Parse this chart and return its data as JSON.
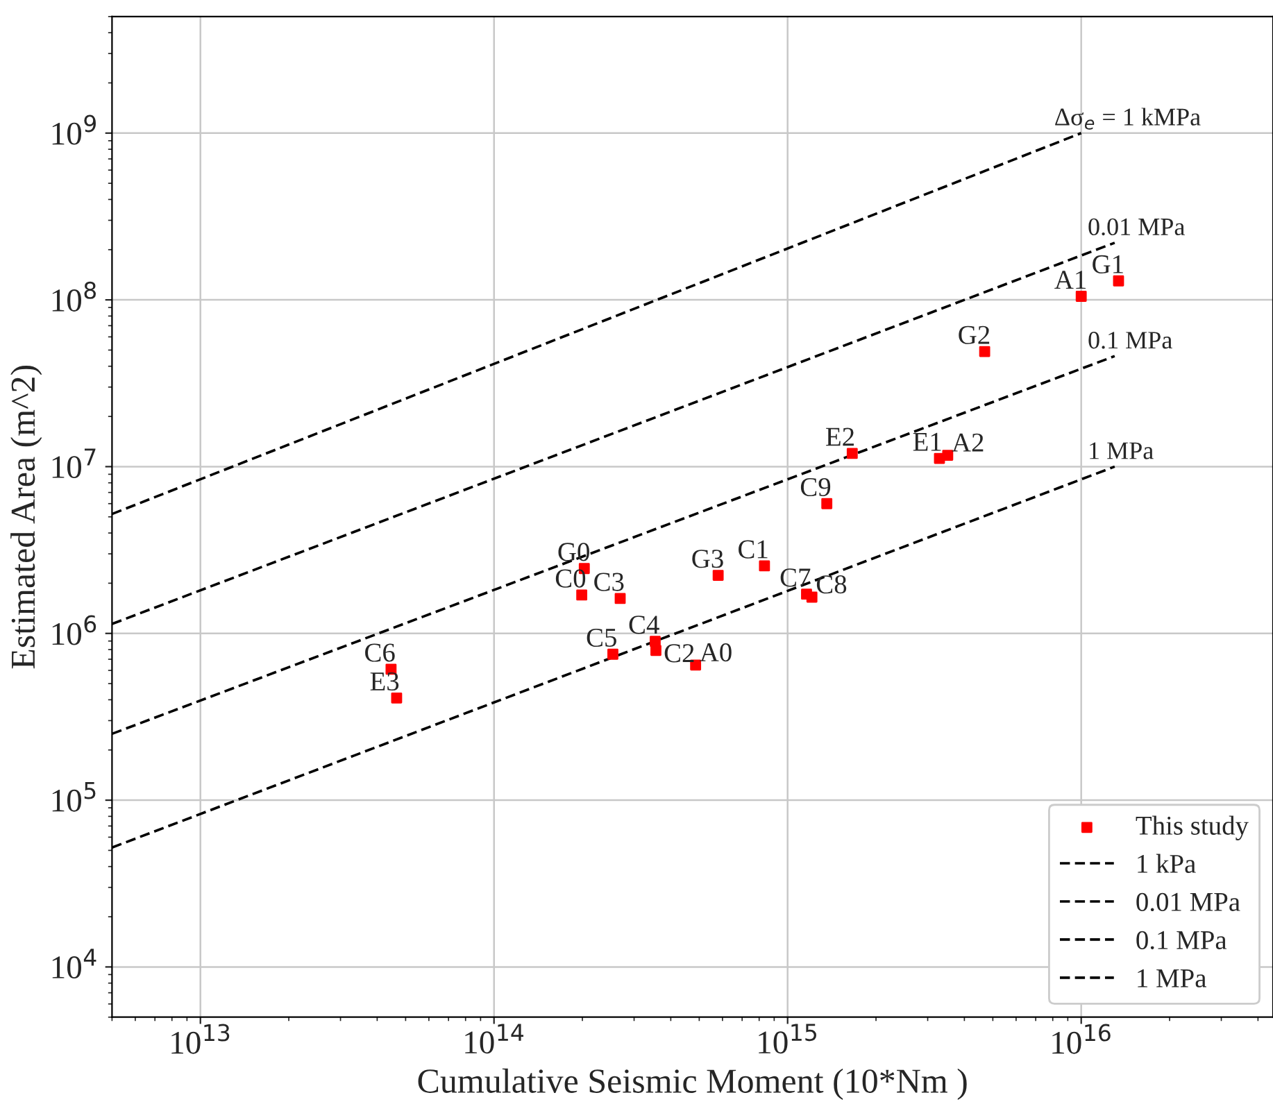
{
  "chart_data": {
    "type": "scatter",
    "xlabel": "Cumulative Seismic Moment (10*Nm )",
    "ylabel": "Estimated Area (m^2)",
    "log": "xy",
    "grid": true,
    "legend": "bottom right",
    "xlim": [
      5000000000000.0,
      4.5e+16
    ],
    "ylim": [
      5000.0,
      5000000000.0
    ],
    "xticks": [
      {
        "value": 10000000000000.0,
        "label": "10$^{13}$"
      },
      {
        "value": 100000000000000.0,
        "label": "10$^{14}$"
      },
      {
        "value": 1000000000000000.0,
        "label": "10$^{15}$"
      },
      {
        "value": 1e+16,
        "label": "10$^{16}$"
      }
    ],
    "yticks": [
      {
        "value": 10000.0,
        "label": "10$^{4}$"
      },
      {
        "value": 100000.0,
        "label": "10$^{5}$"
      },
      {
        "value": 1000000.0,
        "label": "10$^{6}$"
      },
      {
        "value": 10000000.0,
        "label": "10$^{7}$"
      },
      {
        "value": 100000000.0,
        "label": "10$^{8}$"
      },
      {
        "value": 1000000000.0,
        "label": "10$^{9}$"
      }
    ],
    "series": [
      {
        "name": "This study",
        "marker": "square",
        "color": "#ff0000",
        "x": [
          44600000000000.0,
          46600000000000.0,
          203000000000000.0,
          199000000000000.0,
          269000000000000.0,
          354000000000000.0,
          254000000000000.0,
          356000000000000.0,
          486000000000000.0,
          580000000000000.0,
          834000000000000.0,
          1160000000000000.0,
          1210000000000000.0,
          1e+16,
          1.34e+16,
          4690000000000000.0,
          1660000000000000.0,
          3290000000000000.0,
          3510000000000000.0,
          1360000000000000.0
        ],
        "values": [
          610000.0,
          410000.0,
          2450000.0,
          1700000.0,
          1620000.0,
          896000.0,
          750000.0,
          790000.0,
          646000.0,
          2230000.0,
          2540000.0,
          1720000.0,
          1650000.0,
          105000000.0,
          130000000.0,
          49000000.0,
          12000000.0,
          11200000.0,
          11700000.0,
          6000000.0
        ]
      },
      {
        "name": "1 kPa",
        "type": "line",
        "line_style": "dashed",
        "color": "#000000",
        "x": [
          5000000000000.0,
          1e+16
        ],
        "values": [
          5200000.0,
          1000000000.0
        ]
      },
      {
        "name": "0.01 MPa",
        "type": "line",
        "line_style": "dashed",
        "color": "#000000",
        "x": [
          5000000000000.0,
          1.3e+16
        ],
        "values": [
          1140000.0,
          220000000.0
        ]
      },
      {
        "name": "0.1 MPa",
        "type": "line",
        "line_style": "dashed",
        "color": "#000000",
        "x": [
          5000000000000.0,
          1.3e+16
        ],
        "values": [
          250000.0,
          46000000.0
        ]
      },
      {
        "name": "1 MPa",
        "type": "line",
        "line_style": "dashed",
        "color": "#000000",
        "x": [
          5000000000000.0,
          1.3e+16
        ],
        "values": [
          52000.0,
          10000000.0
        ]
      }
    ],
    "annotations": [
      {
        "text": "C6",
        "x": 44600000000000.0,
        "y": 610000.0
      },
      {
        "text": "E3",
        "x": 46600000000000.0,
        "y": 410000.0
      },
      {
        "text": "G0",
        "x": 203000000000000.0,
        "y": 2450000.0
      },
      {
        "text": "C0",
        "x": 199000000000000.0,
        "y": 1700000.0
      },
      {
        "text": "C3",
        "x": 269000000000000.0,
        "y": 1620000.0
      },
      {
        "text": "C4",
        "x": 354000000000000.0,
        "y": 896000.0
      },
      {
        "text": "C5",
        "x": 254000000000000.0,
        "y": 750000.0
      },
      {
        "text": "C2",
        "x": 356000000000000.0,
        "y": 790000.0
      },
      {
        "text": "A0",
        "x": 486000000000000.0,
        "y": 646000.0
      },
      {
        "text": "G3",
        "x": 580000000000000.0,
        "y": 2230000.0
      },
      {
        "text": "C1",
        "x": 834000000000000.0,
        "y": 2540000.0
      },
      {
        "text": "C7",
        "x": 1160000000000000.0,
        "y": 1720000.0
      },
      {
        "text": "C8",
        "x": 1210000000000000.0,
        "y": 1650000.0
      },
      {
        "text": "A1",
        "x": 1e+16,
        "y": 105000000.0
      },
      {
        "text": "G1",
        "x": 1.34e+16,
        "y": 130000000.0
      },
      {
        "text": "G2",
        "x": 4690000000000000.0,
        "y": 49000000.0
      },
      {
        "text": "E2",
        "x": 1660000000000000.0,
        "y": 12000000.0
      },
      {
        "text": "E1",
        "x": 3290000000000000.0,
        "y": 11200000.0
      },
      {
        "text": "A2",
        "x": 3510000000000000.0,
        "y": 11700000.0
      },
      {
        "text": "C9",
        "x": 1360000000000000.0,
        "y": 6000000.0
      },
      {
        "text": "Δσ$_{e}$ = 1 kMPa",
        "x": 1e+16,
        "y": 1000000000.0
      },
      {
        "text": "0.01 MPa",
        "x": 1.3e+16,
        "y": 220000000.0
      },
      {
        "text": "0.1 MPa",
        "x": 1.3e+16,
        "y": 46000000.0
      },
      {
        "text": "1 MPa",
        "x": 1.3e+16,
        "y": 10000000.0
      }
    ]
  }
}
